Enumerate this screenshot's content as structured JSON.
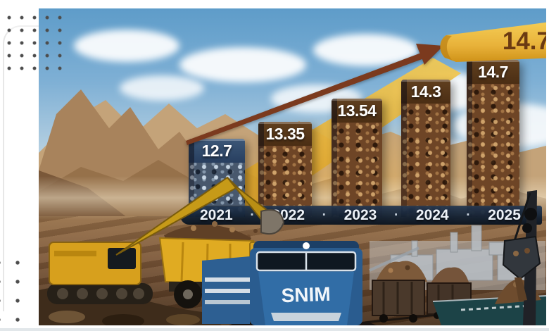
{
  "chart_data": {
    "type": "bar",
    "title": "",
    "categories": [
      "2021",
      "2022",
      "2023",
      "2024",
      "2025"
    ],
    "values": [
      12.7,
      13.35,
      13.54,
      14.3,
      14.7
    ],
    "value_labels": [
      "12.7",
      "13.35",
      "13.54",
      "14.3",
      "14.7"
    ],
    "separator": "·",
    "banner_value": "14.7",
    "trend_arrow": true,
    "ylim": [
      0,
      16
    ],
    "legend": "none",
    "xlabel": "",
    "ylabel": "",
    "bar_colors": {
      "first": "#48586D",
      "rest": "#6E4526"
    }
  },
  "scene": {
    "train_label": "SNIM",
    "elements": [
      "mountains",
      "open-pit-mine",
      "excavator",
      "haul-truck",
      "ore-train",
      "ore-wagons",
      "industrial-plant",
      "port-crane",
      "bulk-ship"
    ]
  },
  "colors": {
    "banner_gold": "#E9B646",
    "banner_text": "#6B3A12",
    "arrow": "#7B3A1E",
    "year_band": "#122539",
    "value_text": "#FFFFFF"
  }
}
